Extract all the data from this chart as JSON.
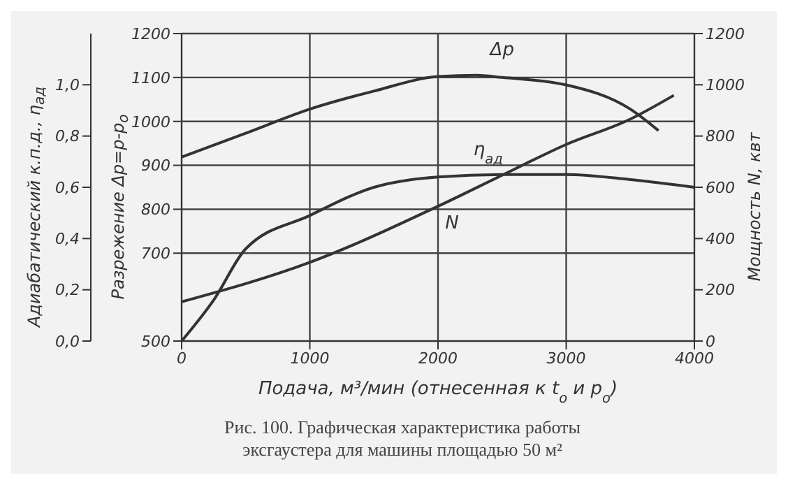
{
  "chart_data": {
    "type": "line",
    "xlabel": "Подача, м³/мин (отнесенная к t$_{o}$ и p$_{o}$)",
    "ylabel": "Разрежение Δp=p-p$_{o}$",
    "y2label": "Мощность N, квт",
    "y3label": "Адиабатический к.п.д., η$_{ад}$",
    "annotations": [
      "Рис. 100. Графическая характеристика работы эксгаустера для машины площадью 50 м²"
    ],
    "xlim": [
      0,
      4000
    ],
    "xticks": [
      0,
      1000,
      2000,
      3000,
      4000
    ],
    "ylim": [
      500,
      1200
    ],
    "yticks": [
      500,
      700,
      800,
      900,
      1000,
      1100,
      1200
    ],
    "y2lim": [
      0,
      1200
    ],
    "y2ticks": [
      0,
      200,
      400,
      600,
      800,
      1000,
      1200
    ],
    "y3lim": [
      0,
      1.2
    ],
    "y3ticks": [
      {
        "value": 0,
        "label": "0,0"
      },
      {
        "value": 0.2,
        "label": "0,2"
      },
      {
        "value": 0.4,
        "label": "0,4"
      },
      {
        "value": 0.6,
        "label": "0,6"
      },
      {
        "value": 0.8,
        "label": "0,8"
      },
      {
        "value": 1,
        "label": "1,0"
      }
    ],
    "grid": true,
    "marker": "none",
    "line_style": "solid",
    "series": [
      {
        "name": "Δp",
        "color": "#333333",
        "x": [
          0,
          500,
          1000,
          1500,
          2000,
          2300,
          2500,
          3000,
          3500,
          3720
        ],
        "values": [
          919,
          973,
          1028,
          1069,
          1102,
          1105,
          1100,
          1083,
          1028,
          979
        ]
      },
      {
        "name": "η$_{ад}$",
        "color": "#333333",
        "axis": "y3",
        "x": [
          0,
          250,
          500,
          1000,
          1500,
          2000,
          2500,
          3000,
          3500,
          4000
        ],
        "values": [
          0,
          0.16,
          0.36,
          0.49,
          0.6,
          0.64,
          0.65,
          0.65,
          0.63,
          0.6
        ]
      },
      {
        "name": "N",
        "color": "#333333",
        "axis": "y2",
        "x": [
          0,
          1000,
          2000,
          2500,
          3000,
          3500,
          3840
        ],
        "values": [
          153,
          307,
          526,
          647,
          767,
          866,
          959
        ]
      }
    ]
  }
}
